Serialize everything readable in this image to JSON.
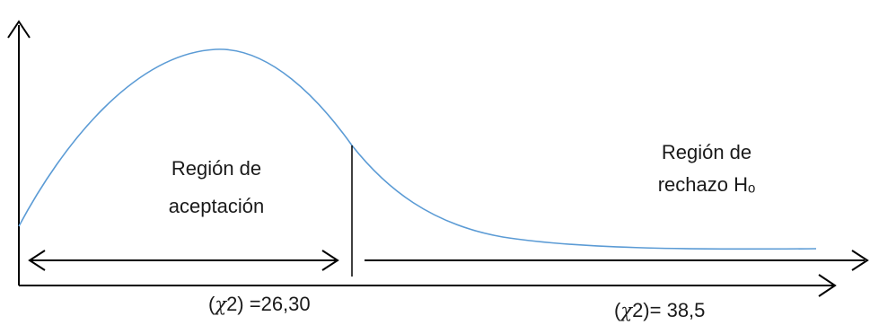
{
  "regions": {
    "acceptance": {
      "line1": "Región de",
      "line2": "aceptación"
    },
    "rejection": {
      "line1": "Región de",
      "line2": "rechazo Hₒ"
    }
  },
  "critical_values": {
    "left": {
      "prefix": "(",
      "symbol": "χ",
      "suffix": "2) =26,30"
    },
    "right": {
      "prefix": "(",
      "symbol": "χ",
      "suffix": "2)= 38,5"
    }
  },
  "colors": {
    "curve": "#5b9bd5",
    "axis": "#000000"
  }
}
